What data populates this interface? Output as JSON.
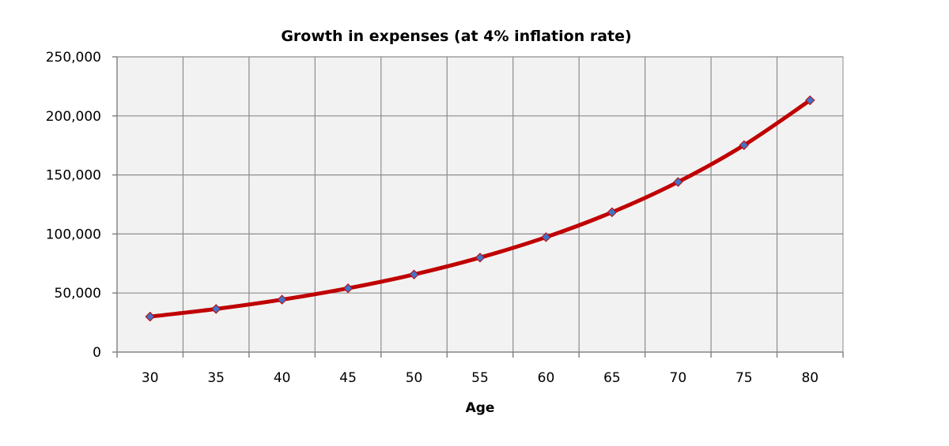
{
  "chart_data": {
    "type": "line",
    "title": "Growth in expenses (at 4% inflation rate)",
    "xlabel": "Age",
    "ylabel": "",
    "x": [
      30,
      35,
      40,
      45,
      50,
      55,
      60,
      65,
      70,
      75,
      80
    ],
    "x_tick_labels": [
      "30",
      "35",
      "40",
      "45",
      "50",
      "55",
      "60",
      "65",
      "70",
      "75",
      "80"
    ],
    "y_ticks": [
      0,
      50000,
      100000,
      150000,
      200000,
      250000
    ],
    "y_tick_labels": [
      "0",
      "50,000",
      "100,000",
      "150,000",
      "200,000",
      "250,000"
    ],
    "ylim": [
      0,
      250000
    ],
    "grid": true,
    "series": [
      {
        "values": [
          30000,
          36500,
          44400,
          54000,
          65700,
          80000,
          97300,
          118400,
          144000,
          175200,
          213200
        ]
      }
    ],
    "colors": {
      "line": "#c00000",
      "marker": "#4472c4",
      "plot_background": "#f2f2f2",
      "grid": "#8c8c8c"
    }
  }
}
